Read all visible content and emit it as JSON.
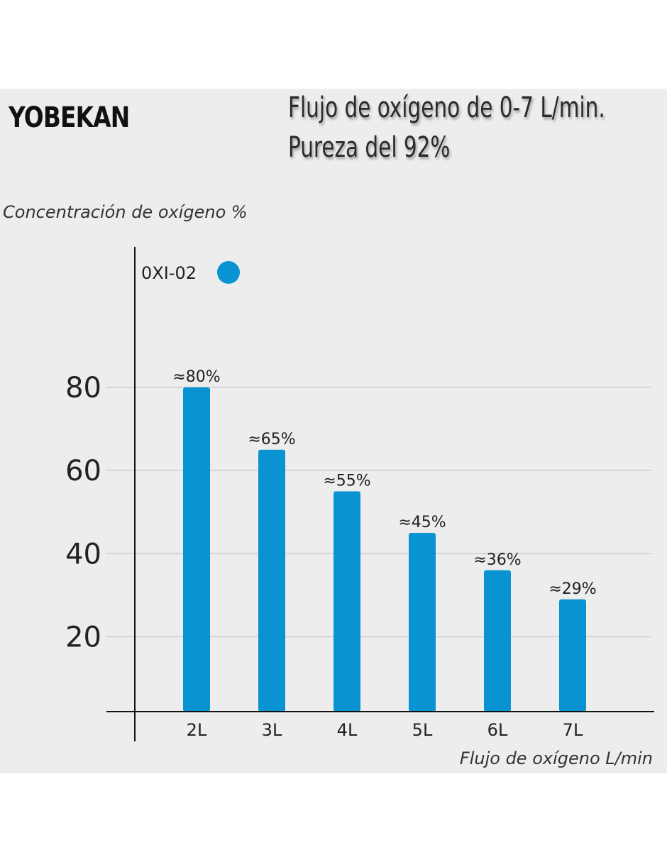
{
  "brand": "YOBEKAN",
  "title_lines": [
    "Flujo de oxígeno de 0-7 L/min.",
    "Pureza del 92%"
  ],
  "chart_data": {
    "type": "bar",
    "ylabel": "Concentración de oxígeno %",
    "xlabel": "Flujo de oxígeno L/min",
    "categories": [
      "2L",
      "3L",
      "4L",
      "5L",
      "6L",
      "7L"
    ],
    "series": [
      {
        "name": "0XI-02",
        "color": "#0a93d2",
        "values": [
          80,
          65,
          55,
          45,
          36,
          29
        ]
      }
    ],
    "data_labels": [
      "≈80%",
      "≈65%",
      "≈55%",
      "≈45%",
      "≈36%",
      "≈29%"
    ],
    "yticks": [
      20,
      40,
      60,
      80
    ],
    "ylim": [
      2,
      103
    ],
    "grid": true,
    "legend": "top-left"
  }
}
